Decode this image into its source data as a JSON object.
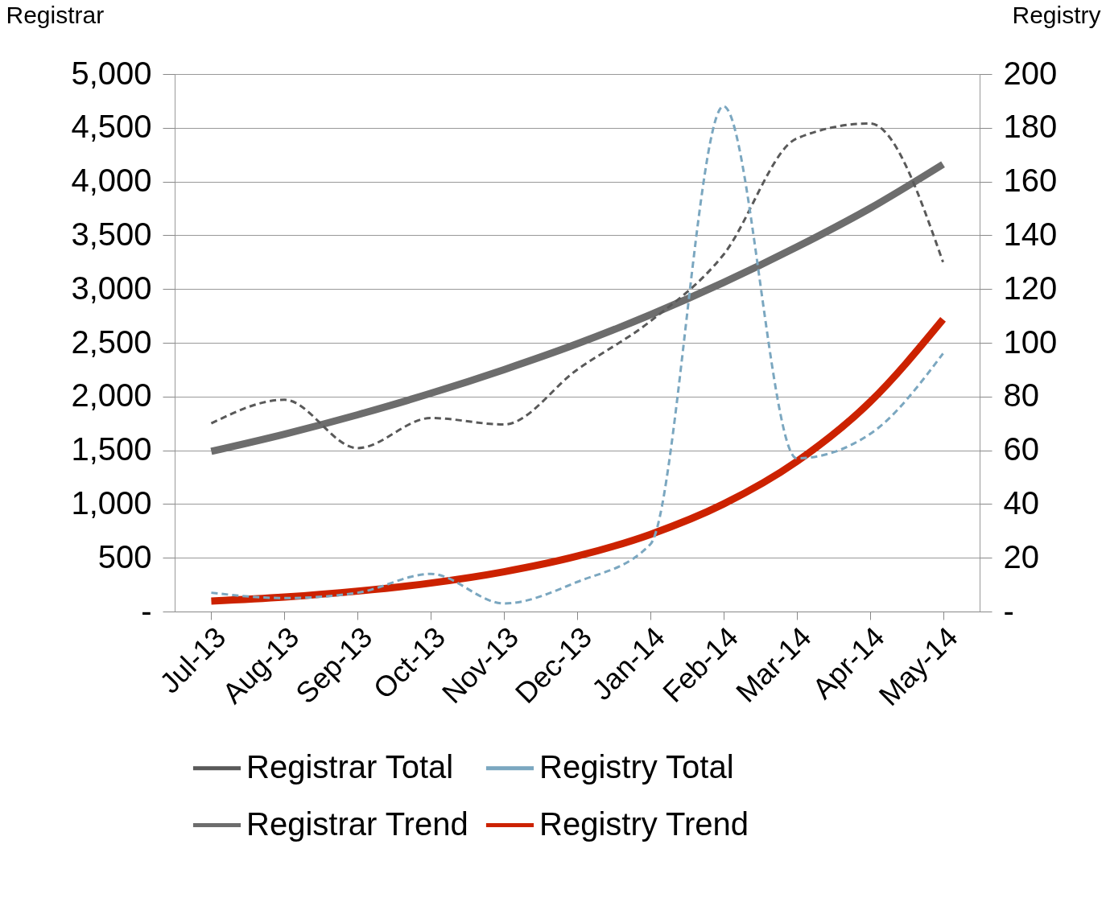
{
  "chart_data": {
    "type": "line",
    "ylabel": "Registrar",
    "y2label": "Registry",
    "categories": [
      "Jul-13",
      "Aug-13",
      "Sep-13",
      "Oct-13",
      "Nov-13",
      "Dec-13",
      "Jan-14",
      "Feb-14",
      "Mar-14",
      "Apr-14",
      "May-14"
    ],
    "series": [
      {
        "name": "Registrar Total",
        "color": "#595959",
        "line_style": "dashed",
        "values": [
          1750,
          1970,
          1520,
          1800,
          1740,
          2250,
          2700,
          3320,
          4400,
          4540,
          3250
        ]
      },
      {
        "name": "Registry Total",
        "color": "#7ba7c0",
        "line_style": "dashed",
        "axis": "y2",
        "values": [
          7,
          5,
          7,
          14,
          3,
          11,
          25,
          188,
          57,
          66,
          96
        ]
      },
      {
        "name": "Registrar Trend",
        "color": "#6d6d6d",
        "line_style": "solid",
        "values": [
          1490,
          1650,
          1830,
          2030,
          2250,
          2490,
          2760,
          3060,
          3390,
          3750,
          4160
        ]
      },
      {
        "name": "Registry Trend",
        "color": "#cc2200",
        "line_style": "solid",
        "axis": "y2",
        "values": [
          3.9,
          5.4,
          7.6,
          10.6,
          14.8,
          20.6,
          28.7,
          40,
          55.8,
          77.9,
          108.7
        ]
      }
    ],
    "ylim": [
      0,
      5000
    ],
    "yticks": [
      {
        "value": 0,
        "label": "-"
      },
      {
        "value": 500,
        "label": "500"
      },
      {
        "value": 1000,
        "label": "1,000"
      },
      {
        "value": 1500,
        "label": "1,500"
      },
      {
        "value": 2000,
        "label": "2,000"
      },
      {
        "value": 2500,
        "label": "2,500"
      },
      {
        "value": 3000,
        "label": "3,000"
      },
      {
        "value": 3500,
        "label": "3,500"
      },
      {
        "value": 4000,
        "label": "4,000"
      },
      {
        "value": 4500,
        "label": "4,500"
      },
      {
        "value": 5000,
        "label": "5,000"
      }
    ],
    "y2lim": [
      0,
      200
    ],
    "y2ticks": [
      {
        "value": 0,
        "label": "-"
      },
      20,
      40,
      60,
      80,
      100,
      120,
      140,
      160,
      180,
      200
    ],
    "grid": "y",
    "legend": "bottom"
  }
}
